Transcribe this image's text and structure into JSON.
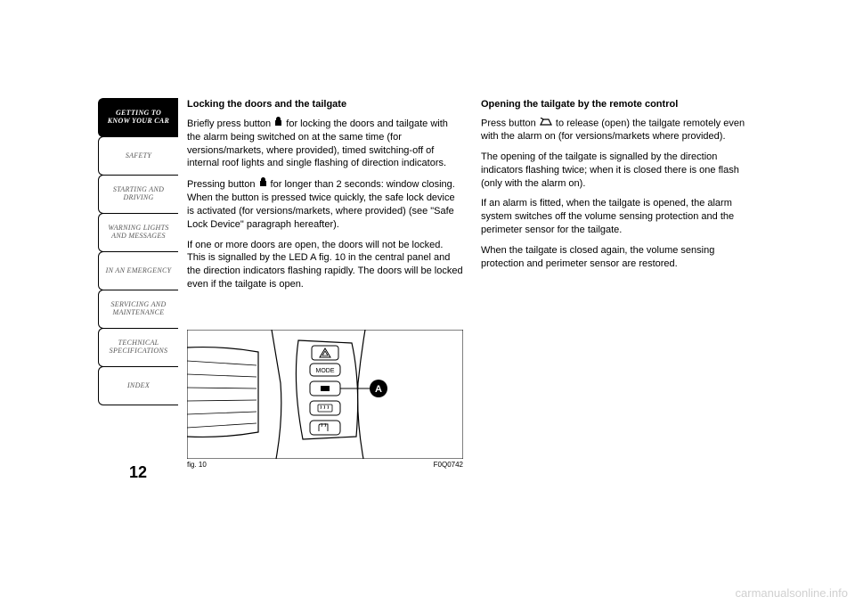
{
  "sidebar": {
    "tabs": [
      {
        "label": "GETTING TO\nKNOW YOUR CAR",
        "active": true
      },
      {
        "label": "SAFETY",
        "active": false
      },
      {
        "label": "STARTING AND\nDRIVING",
        "active": false
      },
      {
        "label": "WARNING LIGHTS\nAND MESSAGES",
        "active": false
      },
      {
        "label": "IN AN EMERGENCY",
        "active": false
      },
      {
        "label": "SERVICING AND\nMAINTENANCE",
        "active": false
      },
      {
        "label": "TECHNICAL\nSPECIFICATIONS",
        "active": false
      },
      {
        "label": "INDEX",
        "active": false
      }
    ]
  },
  "page_number": "12",
  "col1": {
    "heading": "Locking the doors and the tailgate",
    "p1a": "Briefly press button ",
    "p1b": " for locking the doors and tailgate with the alarm being switched on at the same time (for versions/markets, where provided), timed switching-off of internal roof lights and single flashing of direction indicators.",
    "p2a": "Pressing button ",
    "p2b": " for longer than 2 seconds: window closing. When the button is pressed twice quickly, the safe lock device is activated (for versions/markets, where provided) (see \"Safe Lock Device\" paragraph hereafter).",
    "p3": "If one or more doors are open, the doors will not be locked. This is signalled by the LED A fig. 10 in the central panel and the direction indicators flashing rapidly. The doors will be locked even if the tailgate is open."
  },
  "col2": {
    "heading": "Opening the tailgate by the remote control",
    "p1a": "Press button ",
    "p1b": " to release (open) the tailgate remotely even with the alarm on (for versions/markets where provided).",
    "p2": "The opening of the tailgate is signalled by the direction indicators flashing twice; when it is closed there is one flash (only with the alarm on).",
    "p3": "If an alarm is fitted, when the tailgate is opened, the alarm system switches off the volume sensing protection and the perimeter sensor for the tailgate.",
    "p4": "When the tailgate is closed again, the volume sensing protection and perimeter sensor are restored."
  },
  "figure": {
    "label": "fig. 10",
    "code": "F0Q0742",
    "marker": "A",
    "buttons": [
      "MODE"
    ]
  },
  "watermark": "carmanualsonline.info"
}
